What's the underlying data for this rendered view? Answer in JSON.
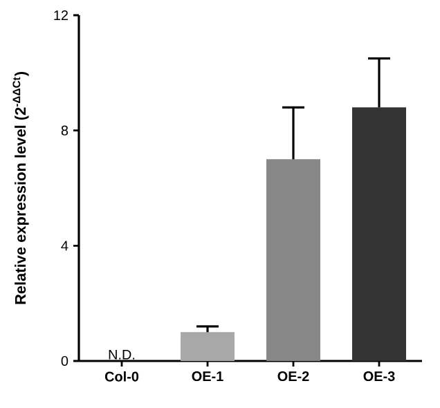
{
  "chart_data": {
    "type": "bar",
    "ylabel": "Relative expression level (2$^{-ΔΔCt}$)",
    "categories": [
      "Col-0",
      "OE-1",
      "OE-2",
      "OE-3"
    ],
    "values": [
      null,
      1.0,
      7.0,
      8.8
    ],
    "colors": [
      "#a8a8a8",
      "#a8a8a8",
      "#878787",
      "#333333"
    ],
    "errors": [
      null,
      [
        1.0,
        1.2
      ],
      [
        7.0,
        8.8
      ],
      [
        8.8,
        10.5
      ]
    ],
    "annotations": [
      "N.D."
    ],
    "ylim": [
      0,
      12
    ],
    "yticks": [
      0,
      4,
      8,
      12
    ],
    "grid": false
  }
}
